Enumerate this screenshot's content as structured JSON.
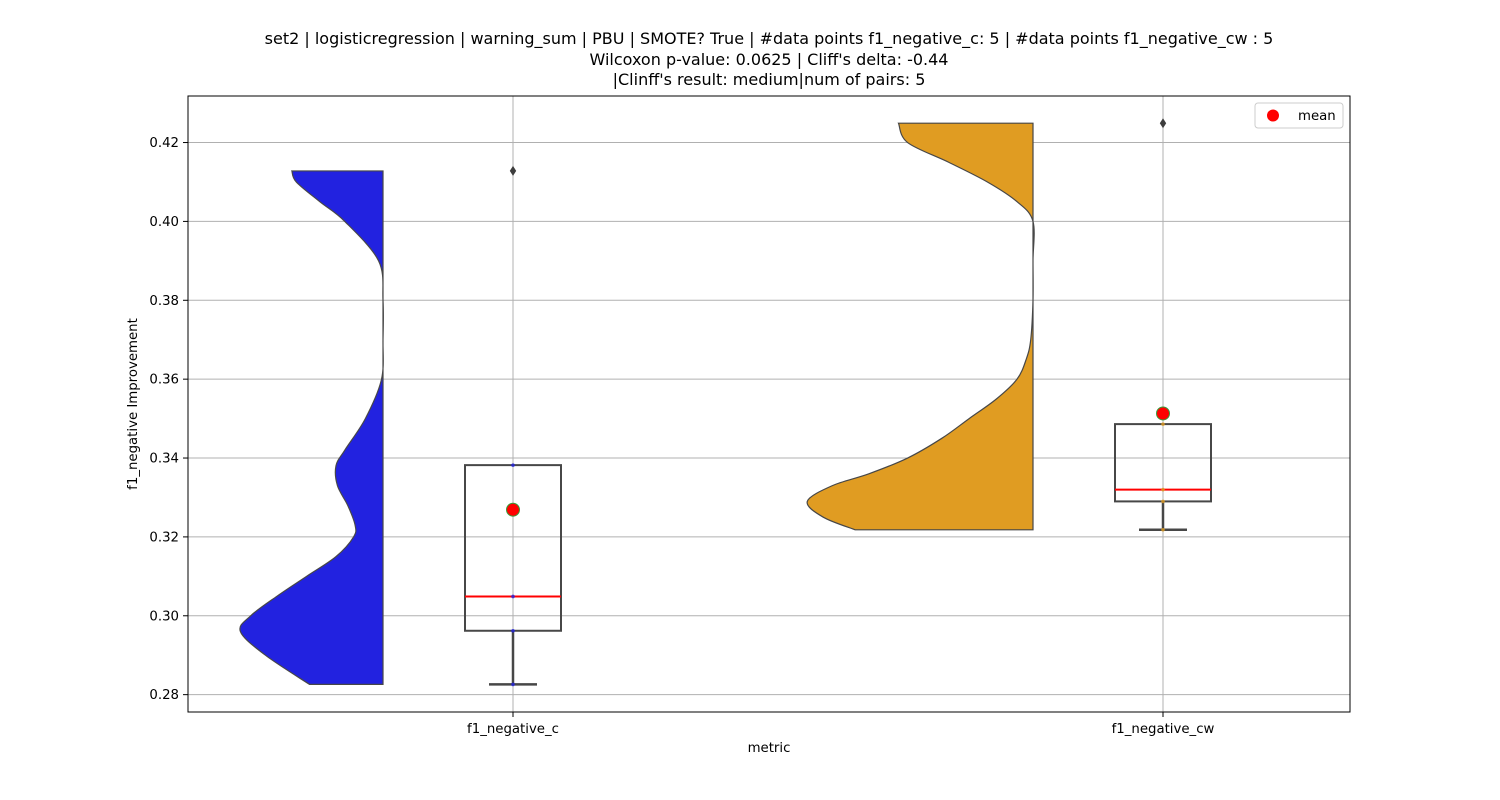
{
  "chart_data": {
    "type": "violin-box",
    "title_lines": [
      "set2 | logisticregression | warning_sum | PBU | SMOTE? True | #data points f1_negative_c: 5 | #data points f1_negative_cw : 5",
      "Wilcoxon p-value: 0.0625 | Cliff's delta: -0.44",
      "|Clinff's result: medium|num of pairs: 5"
    ],
    "xlabel": "metric",
    "ylabel": "f1_negative Improvement",
    "ylim": [
      0.2756,
      0.4318
    ],
    "yticks": [
      0.28,
      0.3,
      0.32,
      0.34,
      0.36,
      0.38,
      0.4,
      0.42
    ],
    "ytick_labels": [
      "0.28",
      "0.30",
      "0.32",
      "0.34",
      "0.36",
      "0.38",
      "0.40",
      "0.42"
    ],
    "grid": true,
    "legend": {
      "placement": "top-right",
      "entries": [
        {
          "label": "mean",
          "color": "#ff0000"
        }
      ]
    },
    "categories": [
      "f1_negative_c",
      "f1_negative_cw"
    ],
    "series": [
      {
        "category": "f1_negative_c",
        "violin_color": "#2222e0",
        "points": [
          0.2826,
          0.2962,
          0.3049,
          0.3382,
          0.4128
        ],
        "box": {
          "whisker_low": 0.2826,
          "q1": 0.2962,
          "median": 0.3049,
          "q3": 0.3382,
          "whisker_high": 0.3382
        },
        "outliers": [
          0.4128
        ],
        "mean": 0.3269,
        "violin_profile": [
          [
            0.2826,
            0.5
          ],
          [
            0.29,
            0.8
          ],
          [
            0.296,
            0.97
          ],
          [
            0.3,
            0.9
          ],
          [
            0.305,
            0.72
          ],
          [
            0.31,
            0.52
          ],
          [
            0.315,
            0.32
          ],
          [
            0.32,
            0.2
          ],
          [
            0.323,
            0.19
          ],
          [
            0.328,
            0.24
          ],
          [
            0.333,
            0.31
          ],
          [
            0.338,
            0.32
          ],
          [
            0.342,
            0.26
          ],
          [
            0.35,
            0.12
          ],
          [
            0.36,
            0.01
          ],
          [
            0.37,
            0.0
          ],
          [
            0.38,
            0.0
          ],
          [
            0.39,
            0.03
          ],
          [
            0.4,
            0.26
          ],
          [
            0.405,
            0.43
          ],
          [
            0.41,
            0.59
          ],
          [
            0.4128,
            0.62
          ]
        ]
      },
      {
        "category": "f1_negative_cw",
        "violin_color": "#e09c22",
        "points": [
          0.3218,
          0.329,
          0.332,
          0.3486,
          0.4249
        ],
        "box": {
          "whisker_low": 0.3218,
          "q1": 0.329,
          "median": 0.332,
          "q3": 0.3486,
          "whisker_high": 0.3486
        },
        "outliers": [
          0.4249
        ],
        "mean": 0.3513,
        "violin_profile": [
          [
            0.3218,
            0.78
          ],
          [
            0.325,
            0.92
          ],
          [
            0.329,
            0.99
          ],
          [
            0.333,
            0.88
          ],
          [
            0.336,
            0.72
          ],
          [
            0.34,
            0.55
          ],
          [
            0.345,
            0.4
          ],
          [
            0.35,
            0.28
          ],
          [
            0.355,
            0.16
          ],
          [
            0.36,
            0.07
          ],
          [
            0.365,
            0.03
          ],
          [
            0.37,
            0.01
          ],
          [
            0.38,
            0.0
          ],
          [
            0.39,
            0.0
          ],
          [
            0.4,
            0.0
          ],
          [
            0.405,
            0.07
          ],
          [
            0.41,
            0.2
          ],
          [
            0.415,
            0.37
          ],
          [
            0.42,
            0.55
          ],
          [
            0.4249,
            0.59
          ]
        ]
      }
    ],
    "colors": {
      "box_edge": "#474747",
      "median": "#ff0000",
      "mean_marker": "#ff0000",
      "mean_edge": "#3a9a3a",
      "grid": "#b0b0b0"
    }
  }
}
